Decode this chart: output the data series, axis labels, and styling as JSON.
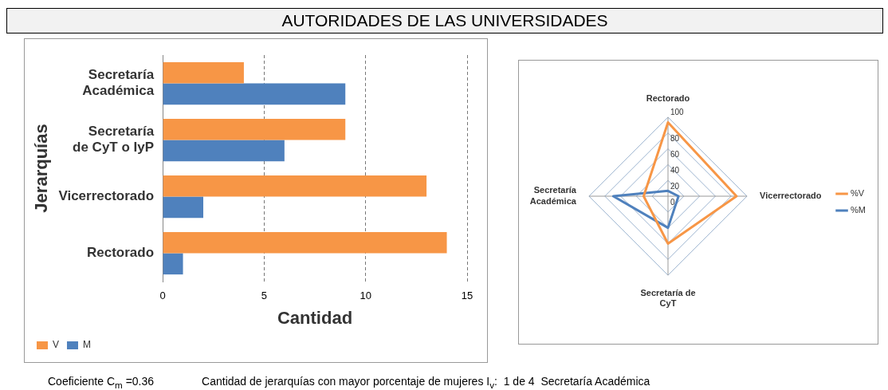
{
  "chart_data": [
    {
      "type": "bar",
      "title": "AUTORIDADES DE LAS UNIVERSIDADES",
      "orientation": "horizontal",
      "categories": [
        "Secretaría Académica",
        "Secretaría de CyT o IyP",
        "Vicerrectorado",
        "Rectorado"
      ],
      "series": [
        {
          "name": "V",
          "color": "#f79646",
          "values": [
            4,
            9,
            13,
            14
          ]
        },
        {
          "name": "M",
          "color": "#4f81bd",
          "values": [
            9,
            6,
            2,
            1
          ]
        }
      ],
      "xlabel": "Cantidad",
      "ylabel": "Jerarquías",
      "xlim": [
        0,
        15
      ],
      "xticks": [
        0,
        5,
        10,
        15
      ],
      "grid": "x",
      "legend": "bottom left",
      "annotations": [
        "Coeficiente C$_{m}$ =0.36",
        "Cantidad de jerarquías con mayor porcentaje de mujeres I$_{v}$:  1 de 4  Secretaría Académica"
      ]
    },
    {
      "type": "radar",
      "categories": [
        "Rectorado",
        "Vicerrectorado",
        "Secretaría de CyT",
        "Secretaría Académica"
      ],
      "series": [
        {
          "name": "%V",
          "color": "#f79646",
          "values": [
            93.3,
            86.7,
            60,
            30.8
          ]
        },
        {
          "name": "%M",
          "color": "#4f81bd",
          "values": [
            6.7,
            13.3,
            40,
            69.2
          ]
        }
      ],
      "ylim": [
        0,
        100
      ],
      "yticks": [
        0,
        20,
        40,
        60,
        80,
        100
      ],
      "grid": true,
      "legend": "right",
      "marker": "none"
    }
  ]
}
